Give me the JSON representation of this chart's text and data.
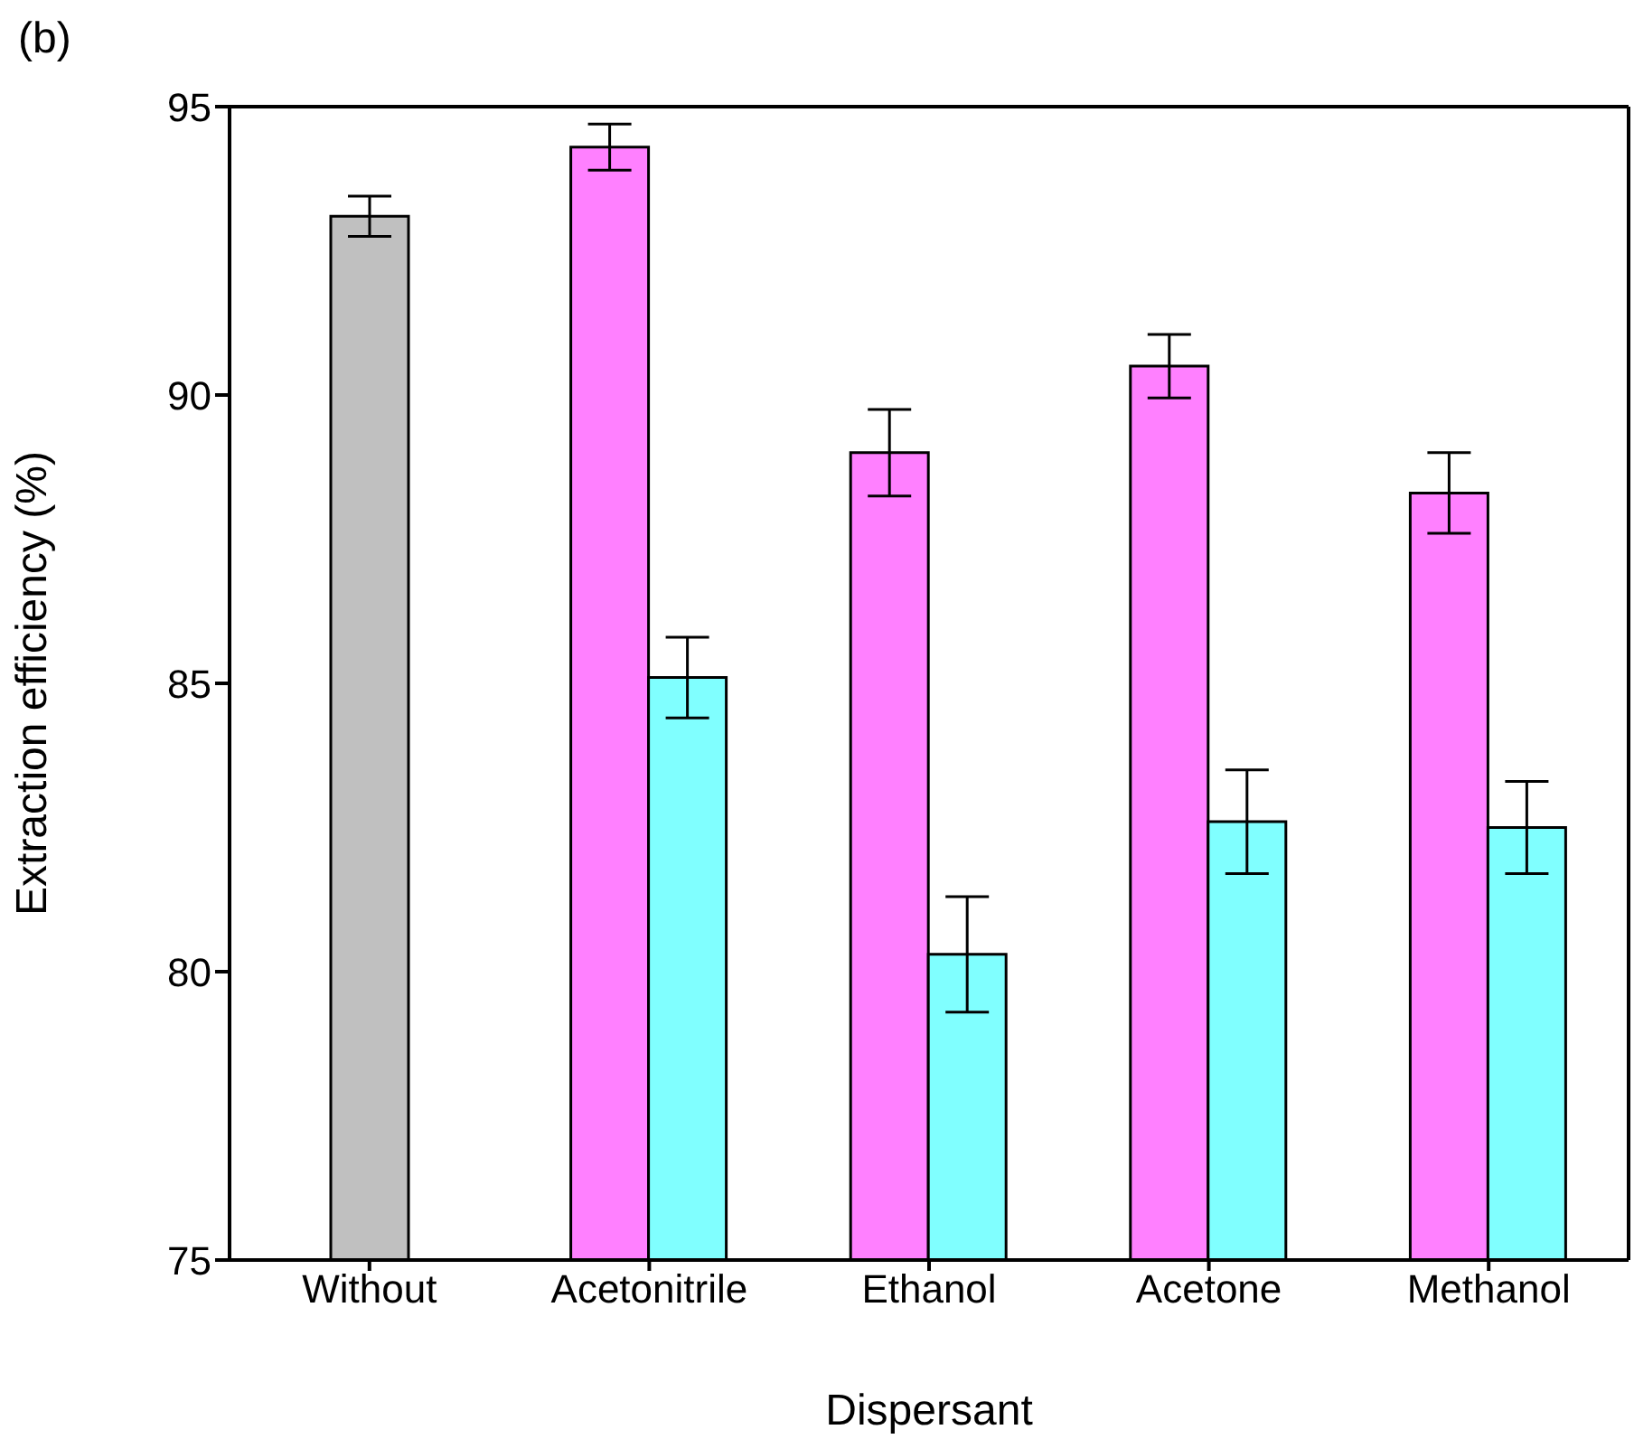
{
  "chart_data": {
    "type": "bar",
    "annotations": [
      "(b)"
    ],
    "xlabel": "Dispersant",
    "ylabel": "Extraction efficiency (%)",
    "categories": [
      "Without",
      "Acetonitrile",
      "Ethanol",
      "Acetone",
      "Methanol"
    ],
    "series": [
      {
        "color": "#c0c0c0",
        "values": [
          93.1,
          null,
          null,
          null,
          null
        ],
        "errors": [
          0.35,
          null,
          null,
          null,
          null
        ]
      },
      {
        "color": "#ff80ff",
        "values": [
          null,
          94.3,
          89.0,
          90.5,
          88.3
        ],
        "errors": [
          null,
          0.4,
          0.75,
          0.55,
          0.7
        ]
      },
      {
        "color": "#80ffff",
        "values": [
          null,
          85.1,
          80.3,
          82.6,
          82.5
        ],
        "errors": [
          null,
          0.7,
          1.0,
          0.9,
          0.8
        ]
      }
    ],
    "ylim": [
      75,
      95
    ],
    "yticks": [
      75,
      80,
      85,
      90,
      95
    ]
  }
}
